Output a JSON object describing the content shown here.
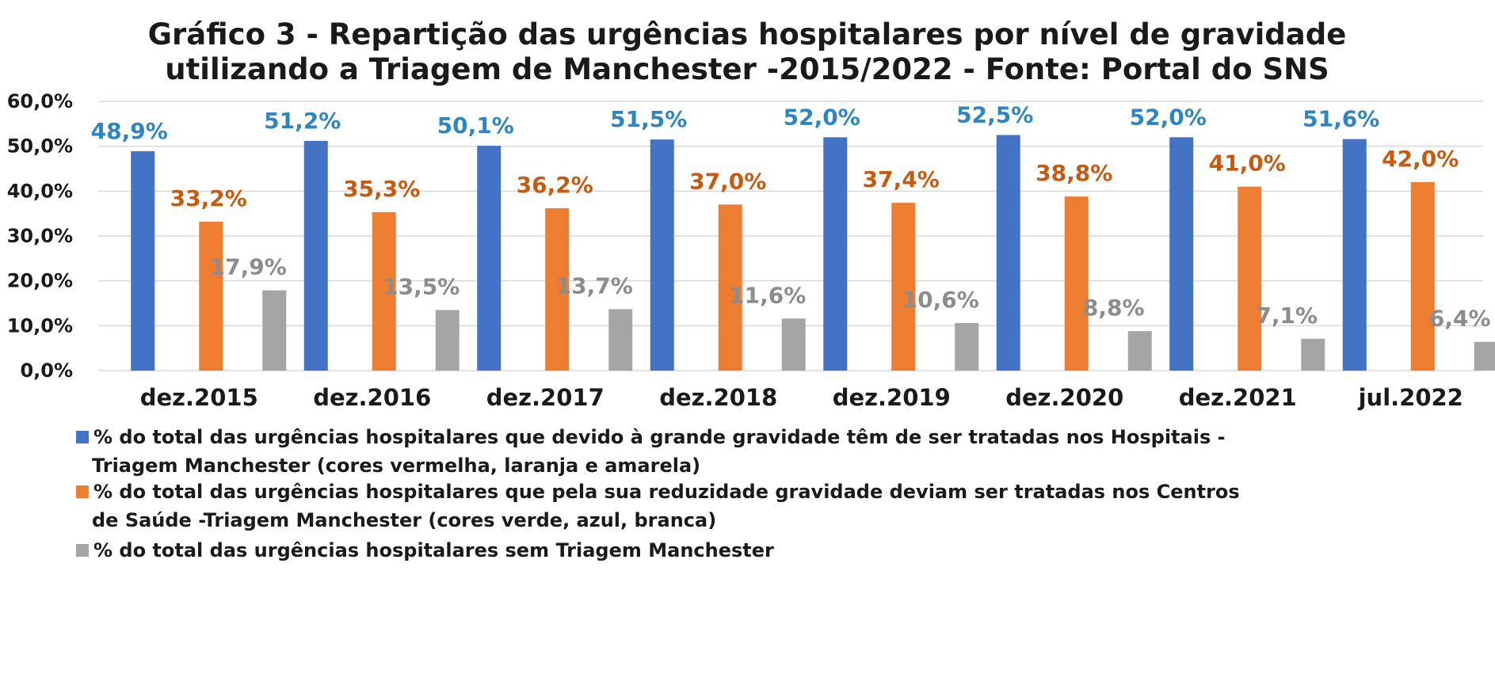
{
  "chart_data": {
    "type": "bar",
    "title_lines": [
      "Gráfico 3 - Repartição das urgências hospitalares por nível de gravidade",
      "utilizando a Triagem de Manchester -2015/2022 - Fonte: Portal do SNS"
    ],
    "categories": [
      "dez.2015",
      "dez.2016",
      "dez.2017",
      "dez.2018",
      "dez.2019",
      "dez.2020",
      "dez.2021",
      "jul.2022"
    ],
    "ylim": [
      0,
      60
    ],
    "yticks": [
      0,
      10,
      20,
      30,
      40,
      50,
      60
    ],
    "ytick_labels": [
      "0,0%",
      "10,0%",
      "20,0%",
      "30,0%",
      "40,0%",
      "50,0%",
      "60,0%"
    ],
    "grid": true,
    "legend_position": "bottom",
    "series": [
      {
        "name_lines": [
          "% do total das urgências hospitalares que devido à grande gravidade têm de ser tratadas nos Hospitais -",
          "Triagem Manchester (cores vermelha, laranja e amarela)"
        ],
        "color": "#4472C4",
        "label_color": "#2E86C1",
        "values": [
          48.9,
          51.2,
          50.1,
          51.5,
          52.0,
          52.5,
          52.0,
          51.6
        ],
        "labels": [
          "48,9%",
          "51,2%",
          "50,1%",
          "51,5%",
          "52,0%",
          "52,5%",
          "52,0%",
          "51,6%"
        ]
      },
      {
        "name_lines": [
          "% do total das urgências hospitalares que pela sua reduzidade gravidade deviam ser  tratadas nos Centros",
          "de Saúde -Triagem Manchester   (cores verde, azul, branca)"
        ],
        "color": "#ED7D31",
        "label_color": "#C55A11",
        "values": [
          33.2,
          35.3,
          36.2,
          37.0,
          37.4,
          38.8,
          41.0,
          42.0
        ],
        "labels": [
          "33,2%",
          "35,3%",
          "36,2%",
          "37,0%",
          "37,4%",
          "38,8%",
          "41,0%",
          "42,0%"
        ]
      },
      {
        "name_lines": [
          "% do total das urgências hospitalares sem Triagem Manchester"
        ],
        "color": "#A5A5A5",
        "label_color": "#8C8C8C",
        "values": [
          17.9,
          13.5,
          13.7,
          11.6,
          10.6,
          8.8,
          7.1,
          6.4
        ],
        "labels": [
          "17,9%",
          "13,5%",
          "13,7%",
          "11,6%",
          "10,6%",
          "8,8%",
          "7,1%",
          "6,4%"
        ]
      }
    ]
  }
}
